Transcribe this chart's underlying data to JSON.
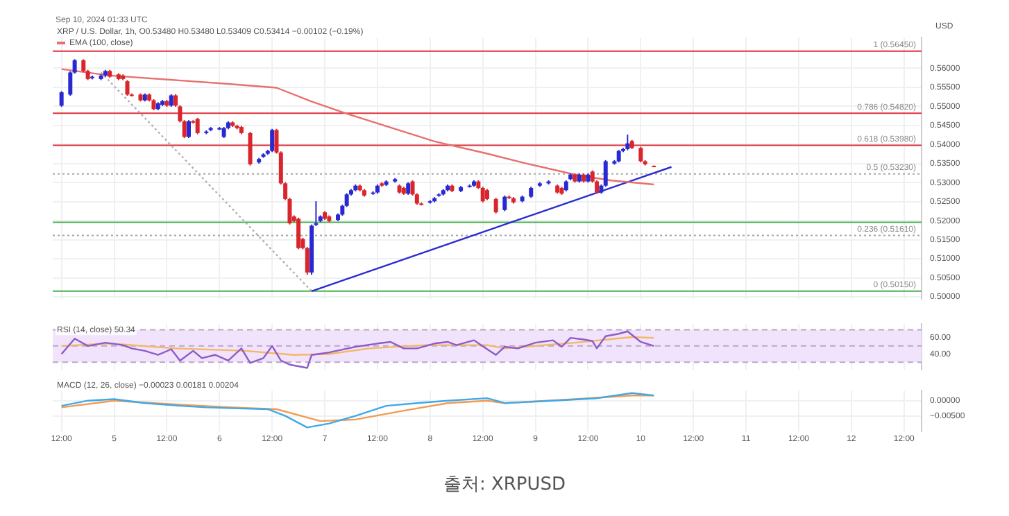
{
  "chart_data": [
    {
      "type": "candlestick",
      "title": "XRP / U.S. Dollar, 1h, O0.53480 H0.53480 L0.53409 C0.53414 −0.00102 (−0.19%)",
      "annotations": [
        "Sep 10, 2024 01:33 UTC"
      ],
      "x": [
        "2024-09-04T12:00",
        "2024-09-04T14:00",
        "2024-09-04T15:00",
        "2024-09-04T17:00",
        "2024-09-04T18:00",
        "2024-09-04T19:00",
        "2024-09-04T21:00",
        "2024-09-04T22:00",
        "2024-09-04T23:00",
        "2024-09-05T01:00",
        "2024-09-05T02:00",
        "2024-09-05T03:00",
        "2024-09-05T04:00",
        "2024-09-05T06:00",
        "2024-09-05T07:00",
        "2024-09-05T08:00",
        "2024-09-05T09:00",
        "2024-09-05T10:00",
        "2024-09-05T11:00",
        "2024-09-05T12:00",
        "2024-09-05T13:00",
        "2024-09-05T14:00",
        "2024-09-05T15:00",
        "2024-09-05T16:00",
        "2024-09-05T17:00",
        "2024-09-05T18:00",
        "2024-09-05T19:00",
        "2024-09-05T21:00",
        "2024-09-05T22:00",
        "2024-09-06T00:00",
        "2024-09-06T01:00",
        "2024-09-06T02:00",
        "2024-09-06T03:00",
        "2024-09-06T04:00",
        "2024-09-06T05:00",
        "2024-09-06T07:00",
        "2024-09-06T09:00",
        "2024-09-06T10:00",
        "2024-09-06T11:00",
        "2024-09-06T12:00",
        "2024-09-06T13:00",
        "2024-09-06T14:00",
        "2024-09-06T15:00",
        "2024-09-06T16:00",
        "2024-09-06T17:00",
        "2024-09-06T18:00",
        "2024-09-06T19:00",
        "2024-09-06T20:00",
        "2024-09-06T21:00",
        "2024-09-06T22:00",
        "2024-09-06T23:00",
        "2024-09-07T00:00",
        "2024-09-07T01:00",
        "2024-09-07T03:00",
        "2024-09-07T04:00",
        "2024-09-07T05:00",
        "2024-09-07T06:00",
        "2024-09-07T07:00",
        "2024-09-07T08:00",
        "2024-09-07T09:00",
        "2024-09-07T11:00",
        "2024-09-07T12:00",
        "2024-09-07T13:00",
        "2024-09-07T14:00",
        "2024-09-07T16:00",
        "2024-09-07T17:00",
        "2024-09-07T18:00",
        "2024-09-07T19:00",
        "2024-09-07T20:00",
        "2024-09-07T21:00",
        "2024-09-07T22:00",
        "2024-09-08T00:00",
        "2024-09-08T01:00",
        "2024-09-08T02:00",
        "2024-09-08T03:00",
        "2024-09-08T04:00",
        "2024-09-08T05:00",
        "2024-09-08T07:00",
        "2024-09-08T09:00",
        "2024-09-08T10:00",
        "2024-09-08T11:00",
        "2024-09-08T12:00",
        "2024-09-08T13:00",
        "2024-09-08T15:00",
        "2024-09-08T17:00",
        "2024-09-08T18:00",
        "2024-09-08T19:00",
        "2024-09-08T21:00",
        "2024-09-08T23:00",
        "2024-09-09T01:00",
        "2024-09-09T03:00",
        "2024-09-09T05:00",
        "2024-09-09T06:00",
        "2024-09-09T07:00",
        "2024-09-09T08:00",
        "2024-09-09T09:00",
        "2024-09-09T10:00",
        "2024-09-09T11:00",
        "2024-09-09T12:00",
        "2024-09-09T13:00",
        "2024-09-09T14:00",
        "2024-09-09T15:00",
        "2024-09-09T16:00",
        "2024-09-09T18:00",
        "2024-09-09T19:00",
        "2024-09-09T20:00",
        "2024-09-09T21:00",
        "2024-09-09T22:00",
        "2024-09-10T00:00",
        "2024-09-10T01:00",
        "2024-09-10T03:00"
      ],
      "ohlc": [
        [
          0.5502,
          0.554,
          0.5499,
          0.5537
        ],
        [
          0.5531,
          0.5592,
          0.5528,
          0.5589
        ],
        [
          0.5589,
          0.5624,
          0.5586,
          0.5621
        ],
        [
          0.5621,
          0.5624,
          0.559,
          0.5593
        ],
        [
          0.5593,
          0.5596,
          0.5569,
          0.5572
        ],
        [
          0.5574,
          0.5581,
          0.5571,
          0.5578
        ],
        [
          0.5572,
          0.5584,
          0.5569,
          0.5581
        ],
        [
          0.5581,
          0.5596,
          0.5578,
          0.5593
        ],
        [
          0.5593,
          0.5596,
          0.5575,
          0.5578
        ],
        [
          0.5584,
          0.5587,
          0.5569,
          0.5572
        ],
        [
          0.5581,
          0.5584,
          0.5569,
          0.5572
        ],
        [
          0.5566,
          0.5569,
          0.5528,
          0.5531
        ],
        [
          0.5531,
          0.5534,
          0.5526,
          0.5529
        ],
        [
          0.5531,
          0.5534,
          0.5513,
          0.5516
        ],
        [
          0.5516,
          0.5534,
          0.5513,
          0.5531
        ],
        [
          0.5531,
          0.5534,
          0.5513,
          0.5516
        ],
        [
          0.5516,
          0.5519,
          0.549,
          0.5493
        ],
        [
          0.5493,
          0.5511,
          0.549,
          0.5508
        ],
        [
          0.5504,
          0.5517,
          0.5501,
          0.5514
        ],
        [
          0.5514,
          0.5517,
          0.5499,
          0.5502
        ],
        [
          0.5502,
          0.5532,
          0.5499,
          0.5529
        ],
        [
          0.5529,
          0.5532,
          0.5499,
          0.5502
        ],
        [
          0.55,
          0.5503,
          0.5458,
          0.5461
        ],
        [
          0.5461,
          0.5464,
          0.5417,
          0.542
        ],
        [
          0.542,
          0.5464,
          0.5417,
          0.5461
        ],
        [
          0.5461,
          0.5464,
          0.5455,
          0.5458
        ],
        [
          0.5467,
          0.547,
          0.5427,
          0.543
        ],
        [
          0.543,
          0.5437,
          0.5427,
          0.5434
        ],
        [
          0.5438,
          0.5446,
          0.5435,
          0.5443
        ],
        [
          0.5441,
          0.5446,
          0.5438,
          0.5443
        ],
        [
          0.542,
          0.5446,
          0.5417,
          0.5443
        ],
        [
          0.5443,
          0.5461,
          0.544,
          0.5458
        ],
        [
          0.5458,
          0.5461,
          0.5446,
          0.5449
        ],
        [
          0.5449,
          0.5452,
          0.544,
          0.5443
        ],
        [
          0.5446,
          0.5449,
          0.5427,
          0.543
        ],
        [
          0.543,
          0.5433,
          0.5345,
          0.5348
        ],
        [
          0.5353,
          0.5365,
          0.535,
          0.5362
        ],
        [
          0.5368,
          0.5377,
          0.5365,
          0.5374
        ],
        [
          0.5376,
          0.5386,
          0.5373,
          0.5383
        ],
        [
          0.5383,
          0.5441,
          0.538,
          0.5438
        ],
        [
          0.5438,
          0.5441,
          0.5376,
          0.5379
        ],
        [
          0.5379,
          0.5382,
          0.5295,
          0.5298
        ],
        [
          0.5298,
          0.5301,
          0.5254,
          0.5257
        ],
        [
          0.5257,
          0.526,
          0.519,
          0.5193
        ],
        [
          0.5211,
          0.5214,
          0.5196,
          0.5199
        ],
        [
          0.5205,
          0.5208,
          0.5125,
          0.5128
        ],
        [
          0.5152,
          0.5155,
          0.5125,
          0.5128
        ],
        [
          0.5128,
          0.5131,
          0.5058,
          0.5064
        ],
        [
          0.5064,
          0.519,
          0.5058,
          0.5187
        ],
        [
          0.5189,
          0.5251,
          0.5186,
          0.5193
        ],
        [
          0.5199,
          0.5214,
          0.5196,
          0.5211
        ],
        [
          0.5222,
          0.5225,
          0.5202,
          0.5205
        ],
        [
          0.5211,
          0.5214,
          0.5196,
          0.5199
        ],
        [
          0.5202,
          0.5219,
          0.5199,
          0.5216
        ],
        [
          0.5216,
          0.5242,
          0.5213,
          0.5239
        ],
        [
          0.5239,
          0.5272,
          0.5236,
          0.5269
        ],
        [
          0.5269,
          0.5283,
          0.5266,
          0.528
        ],
        [
          0.528,
          0.5295,
          0.5277,
          0.5292
        ],
        [
          0.5292,
          0.5295,
          0.5277,
          0.528
        ],
        [
          0.528,
          0.5283,
          0.5263,
          0.5266
        ],
        [
          0.5271,
          0.5277,
          0.5268,
          0.5274
        ],
        [
          0.5274,
          0.5295,
          0.5271,
          0.5292
        ],
        [
          0.5298,
          0.5301,
          0.5289,
          0.5292
        ],
        [
          0.5294,
          0.5306,
          0.5291,
          0.5303
        ],
        [
          0.5303,
          0.5312,
          0.53,
          0.5309
        ],
        [
          0.5292,
          0.5295,
          0.5271,
          0.5274
        ],
        [
          0.5286,
          0.5289,
          0.5268,
          0.5271
        ],
        [
          0.5271,
          0.5301,
          0.5268,
          0.5298
        ],
        [
          0.5303,
          0.5306,
          0.5266,
          0.5269
        ],
        [
          0.5269,
          0.5272,
          0.5242,
          0.5245
        ],
        [
          0.5245,
          0.5248,
          0.524,
          0.5243
        ],
        [
          0.5248,
          0.5254,
          0.5245,
          0.5251
        ],
        [
          0.5251,
          0.5262,
          0.5248,
          0.5259
        ],
        [
          0.5266,
          0.5272,
          0.5263,
          0.5269
        ],
        [
          0.5269,
          0.5283,
          0.5266,
          0.528
        ],
        [
          0.528,
          0.5295,
          0.5277,
          0.5292
        ],
        [
          0.5292,
          0.5295,
          0.5275,
          0.5278
        ],
        [
          0.5278,
          0.5291,
          0.5275,
          0.5288
        ],
        [
          0.529,
          0.5295,
          0.5287,
          0.5292
        ],
        [
          0.5292,
          0.5306,
          0.5289,
          0.5303
        ],
        [
          0.5303,
          0.5306,
          0.5283,
          0.5286
        ],
        [
          0.5286,
          0.5289,
          0.5248,
          0.5251
        ],
        [
          0.528,
          0.5283,
          0.5254,
          0.5257
        ],
        [
          0.5257,
          0.526,
          0.5219,
          0.5222
        ],
        [
          0.5228,
          0.5266,
          0.5225,
          0.5263
        ],
        [
          0.5263,
          0.5266,
          0.5257,
          0.526
        ],
        [
          0.5259,
          0.5262,
          0.5245,
          0.5248
        ],
        [
          0.5251,
          0.5266,
          0.5248,
          0.5263
        ],
        [
          0.5263,
          0.5289,
          0.526,
          0.5286
        ],
        [
          0.5292,
          0.5301,
          0.5289,
          0.5298
        ],
        [
          0.5298,
          0.5306,
          0.5295,
          0.5303
        ],
        [
          0.5292,
          0.5295,
          0.5271,
          0.5274
        ],
        [
          0.5286,
          0.5289,
          0.5268,
          0.5271
        ],
        [
          0.528,
          0.5306,
          0.5277,
          0.5303
        ],
        [
          0.5309,
          0.5324,
          0.5306,
          0.5321
        ],
        [
          0.5321,
          0.5324,
          0.53,
          0.5303
        ],
        [
          0.5303,
          0.5324,
          0.53,
          0.5321
        ],
        [
          0.5321,
          0.5324,
          0.53,
          0.5303
        ],
        [
          0.5303,
          0.5324,
          0.53,
          0.5321
        ],
        [
          0.5329,
          0.5332,
          0.53,
          0.5303
        ],
        [
          0.5303,
          0.5306,
          0.5271,
          0.5274
        ],
        [
          0.5274,
          0.5295,
          0.5271,
          0.5292
        ],
        [
          0.5292,
          0.5359,
          0.5289,
          0.5356
        ],
        [
          0.535,
          0.5359,
          0.5347,
          0.5356
        ],
        [
          0.5356,
          0.5386,
          0.5353,
          0.5383
        ],
        [
          0.5383,
          0.5391,
          0.538,
          0.5388
        ],
        [
          0.5388,
          0.5426,
          0.5385,
          0.5403
        ],
        [
          0.5409,
          0.5412,
          0.5388,
          0.5391
        ],
        [
          0.5391,
          0.5394,
          0.5353,
          0.5356
        ],
        [
          0.5356,
          0.5359,
          0.5345,
          0.5348
        ],
        [
          0.5344,
          0.5345,
          0.5341,
          0.5342
        ]
      ],
      "colors": [
        "#2929d4",
        "#2929d4",
        "#2929d4",
        "#d9262d",
        "#d9262d",
        "#2929d4",
        "#2929d4",
        "#2929d4",
        "#d9262d",
        "#d9262d",
        "#d9262d",
        "#d9262d",
        "#d9262d",
        "#d9262d",
        "#2929d4",
        "#d9262d",
        "#d9262d",
        "#2929d4",
        "#2929d4",
        "#d9262d",
        "#2929d4",
        "#d9262d",
        "#d9262d",
        "#d9262d",
        "#2929d4",
        "#d9262d",
        "#d9262d",
        "#2929d4",
        "#2929d4",
        "#2929d4",
        "#2929d4",
        "#2929d4",
        "#d9262d",
        "#d9262d",
        "#d9262d",
        "#d9262d",
        "#2929d4",
        "#2929d4",
        "#2929d4",
        "#2929d4",
        "#d9262d",
        "#d9262d",
        "#d9262d",
        "#d9262d",
        "#d9262d",
        "#d9262d",
        "#d9262d",
        "#d9262d",
        "#2929d4",
        "#2929d4",
        "#2929d4",
        "#d9262d",
        "#d9262d",
        "#2929d4",
        "#2929d4",
        "#2929d4",
        "#2929d4",
        "#2929d4",
        "#d9262d",
        "#d9262d",
        "#2929d4",
        "#2929d4",
        "#d9262d",
        "#2929d4",
        "#2929d4",
        "#d9262d",
        "#d9262d",
        "#2929d4",
        "#d9262d",
        "#d9262d",
        "#d9262d",
        "#2929d4",
        "#2929d4",
        "#2929d4",
        "#2929d4",
        "#2929d4",
        "#d9262d",
        "#2929d4",
        "#2929d4",
        "#2929d4",
        "#d9262d",
        "#d9262d",
        "#d9262d",
        "#d9262d",
        "#2929d4",
        "#d9262d",
        "#d9262d",
        "#2929d4",
        "#2929d4",
        "#2929d4",
        "#2929d4",
        "#d9262d",
        "#d9262d",
        "#2929d4",
        "#2929d4",
        "#d9262d",
        "#2929d4",
        "#d9262d",
        "#2929d4",
        "#d9262d",
        "#d9262d",
        "#2929d4",
        "#2929d4",
        "#2929d4",
        "#2929d4",
        "#2929d4",
        "#2929d4",
        "#d9262d",
        "#d9262d",
        "#d9262d",
        "#d9262d"
      ],
      "series": [
        {
          "name": "EMA (100, close)",
          "type": "line",
          "color": "#e8706e",
          "x": [
            "2024-09-04T12:00",
            "2024-09-04T23:00",
            "2024-09-06T01:00",
            "2024-09-06T13:00",
            "2024-09-06T21:00",
            "2024-09-07T05:00",
            "2024-09-08T01:00",
            "2024-09-08T13:00",
            "2024-09-08T22:00",
            "2024-09-09T09:00",
            "2024-09-09T17:00",
            "2024-09-10T03:00"
          ],
          "values": [
            0.5598,
            0.5581,
            0.556,
            0.5549,
            0.5513,
            0.5481,
            0.5408,
            0.5376,
            0.535,
            0.5321,
            0.5306,
            0.5295
          ]
        },
        {
          "type": "line",
          "color": "#2b2bd0",
          "x": [
            "2024-09-06T21:00",
            "2024-09-10T07:00"
          ],
          "values": [
            0.5015,
            0.5341
          ]
        },
        {
          "type": "line",
          "color": "#b0b0b0",
          "line_style": "dotted",
          "x": [
            "2024-09-04T21:00",
            "2024-09-06T21:00"
          ],
          "values": [
            0.5589,
            0.5015
          ]
        }
      ],
      "ref_lines": [
        {
          "axis": "y",
          "value": 0.5645,
          "label": "1 (0.56450)",
          "color": "#e0303a"
        },
        {
          "axis": "y",
          "value": 0.5482,
          "label": "0.786 (0.54820)",
          "color": "#e0303a"
        },
        {
          "axis": "y",
          "value": 0.5398,
          "label": "0.618 (0.53980)",
          "color": "#e0303a"
        },
        {
          "axis": "y",
          "value": 0.5323,
          "label": "0.5 (0.53230)",
          "color": "#a8a8a8",
          "line_style": "dotted"
        },
        {
          "axis": "y",
          "value": 0.5196,
          "color": "#4caf50"
        },
        {
          "axis": "y",
          "value": 0.5161,
          "label": "0.236 (0.51610)",
          "color": "#a8a8a8",
          "line_style": "dotted"
        },
        {
          "axis": "y",
          "value": 0.5015,
          "label": "0 (0.50150)",
          "color": "#4caf50"
        }
      ],
      "xlim": [
        "2024-09-04T10:00",
        "2024-09-12T16:00"
      ],
      "xticks": [
        "2024-09-04T12:00",
        "2024-09-05",
        "2024-09-05T12:00",
        "2024-09-06",
        "2024-09-06T12:00",
        "2024-09-07",
        "2024-09-07T12:00",
        "2024-09-08",
        "2024-09-08T12:00",
        "2024-09-09",
        "2024-09-09T12:00",
        "2024-09-10",
        "2024-09-10T12:00",
        "2024-09-11",
        "2024-09-11T12:00",
        "2024-09-12",
        "2024-09-12T12:00"
      ],
      "ylim": [
        0.4995,
        0.5681
      ],
      "yticks": [
        {
          "value": 0.5,
          "label": "0.50000"
        },
        {
          "value": 0.505,
          "label": "0.50500"
        },
        {
          "value": 0.51,
          "label": "0.51000"
        },
        {
          "value": 0.515,
          "label": "0.51500"
        },
        {
          "value": 0.52,
          "label": "0.52000"
        },
        {
          "value": 0.525,
          "label": "0.52500"
        },
        {
          "value": 0.53,
          "label": "0.53000"
        },
        {
          "value": 0.535,
          "label": "0.53500"
        },
        {
          "value": 0.54,
          "label": "0.54000"
        },
        {
          "value": 0.545,
          "label": "0.54500"
        },
        {
          "value": 0.55,
          "label": "0.55000"
        },
        {
          "value": 0.555,
          "label": "0.55500"
        },
        {
          "value": 0.56,
          "label": "0.56000"
        }
      ],
      "ylabel": "USD",
      "grid": true,
      "legend": "top left",
      "tick_labels": "y"
    },
    {
      "type": "line",
      "title": "RSI (14, close) 50.34",
      "series": [
        {
          "type": "line",
          "color": "#8d5cc8",
          "x": [
            "2024-09-04T12:00",
            "2024-09-04T15:00",
            "2024-09-04T18:00",
            "2024-09-04T22:00",
            "2024-09-05T02:00",
            "2024-09-05T04:00",
            "2024-09-05T07:00",
            "2024-09-05T10:00",
            "2024-09-05T13:00",
            "2024-09-05T15:00",
            "2024-09-05T18:00",
            "2024-09-05T20:00",
            "2024-09-05T23:00",
            "2024-09-06T02:00",
            "2024-09-06T05:00",
            "2024-09-06T07:00",
            "2024-09-06T10:00",
            "2024-09-06T12:00",
            "2024-09-06T14:00",
            "2024-09-06T16:00",
            "2024-09-06T20:00",
            "2024-09-06T21:00",
            "2024-09-07T01:00",
            "2024-09-07T07:00",
            "2024-09-07T12:00",
            "2024-09-07T15:00",
            "2024-09-07T18:00",
            "2024-09-07T21:00",
            "2024-09-08T01:00",
            "2024-09-08T04:00",
            "2024-09-08T06:00",
            "2024-09-08T10:00",
            "2024-09-08T13:00",
            "2024-09-08T15:00",
            "2024-09-08T17:00",
            "2024-09-08T20:00",
            "2024-09-09T00:00",
            "2024-09-09T04:00",
            "2024-09-09T06:00",
            "2024-09-09T08:00",
            "2024-09-09T11:00",
            "2024-09-09T13:00",
            "2024-09-09T14:00",
            "2024-09-09T16:00",
            "2024-09-09T19:00",
            "2024-09-09T21:00",
            "2024-09-10T00:00",
            "2024-09-10T03:00"
          ],
          "values": [
            40,
            59,
            50,
            54,
            51,
            47,
            44,
            39,
            46,
            32,
            44,
            35,
            39,
            32,
            47,
            29,
            35,
            50,
            32,
            27,
            23,
            39,
            42,
            49,
            53,
            55,
            47,
            47,
            53,
            55,
            51,
            57,
            46,
            39,
            49,
            47,
            54,
            57,
            49,
            60,
            58,
            56,
            47,
            62,
            65,
            68,
            55,
            50
          ]
        },
        {
          "type": "line",
          "color": "#f2b866",
          "x": [
            "2024-09-04T12:00",
            "2024-09-04T23:00",
            "2024-09-05T14:00",
            "2024-09-06T06:00",
            "2024-09-06T17:00",
            "2024-09-07T01:00",
            "2024-09-07T10:00",
            "2024-09-07T23:00",
            "2024-09-08T13:00",
            "2024-09-08T17:00",
            "2024-09-09T09:00",
            "2024-09-09T22:00",
            "2024-09-10T03:00"
          ],
          "values": [
            50,
            53,
            47,
            44,
            39,
            40,
            47,
            51,
            51,
            47,
            54,
            61,
            60
          ]
        }
      ],
      "bands": [
        {
          "axis": "y",
          "from": 30,
          "to": 70,
          "color": "#f1e3fb"
        }
      ],
      "ref_lines": [
        {
          "axis": "y",
          "value": 70,
          "color": "#b9a6c9",
          "line_style": "dashed"
        },
        {
          "axis": "y",
          "value": 50,
          "color": "#b9a6c9",
          "line_style": "dashed"
        },
        {
          "axis": "y",
          "value": 30,
          "color": "#b9a6c9",
          "line_style": "dashed"
        }
      ],
      "xlim": [
        "2024-09-04T10:00",
        "2024-09-12T16:00"
      ],
      "xticks": [
        "2024-09-04T12:00",
        "2024-09-05",
        "2024-09-05T12:00",
        "2024-09-06",
        "2024-09-06T12:00",
        "2024-09-07",
        "2024-09-07T12:00",
        "2024-09-08",
        "2024-09-08T12:00",
        "2024-09-09",
        "2024-09-09T12:00",
        "2024-09-10",
        "2024-09-10T12:00",
        "2024-09-11",
        "2024-09-11T12:00",
        "2024-09-12",
        "2024-09-12T12:00"
      ],
      "ylim": [
        21,
        77
      ],
      "yticks": [
        {
          "value": 60,
          "label": "60.00"
        },
        {
          "value": 40,
          "label": "40.00"
        }
      ],
      "grid": true,
      "tick_labels": "y"
    },
    {
      "type": "line",
      "title": "MACD (12, 26, close) −0.00023 0.00181 0.00204",
      "annotations": [
        "출처: XRPUSD"
      ],
      "series": [
        {
          "type": "line",
          "color": "#3fa9e8",
          "x": [
            "2024-09-04T12:00",
            "2024-09-04T18:00",
            "2024-09-05T00:00",
            "2024-09-05T07:00",
            "2024-09-05T15:00",
            "2024-09-05T21:00",
            "2024-09-06T03:00",
            "2024-09-06T11:00",
            "2024-09-06T15:00",
            "2024-09-06T20:00",
            "2024-09-07T01:00",
            "2024-09-07T07:00",
            "2024-09-07T14:00",
            "2024-09-07T21:00",
            "2024-09-08T04:00",
            "2024-09-08T13:00",
            "2024-09-08T17:00",
            "2024-09-09T04:00",
            "2024-09-09T14:00",
            "2024-09-09T22:00",
            "2024-09-10T03:00"
          ],
          "values": [
            -0.0017,
            0,
            0.0005,
            -0.0008,
            -0.0017,
            -0.0022,
            -0.0025,
            -0.0028,
            -0.005,
            -0.0088,
            -0.0075,
            -0.005,
            -0.0017,
            -0.0008,
            0,
            0.0008,
            -0.0008,
            0,
            0.0008,
            0.0025,
            0.0017
          ]
        },
        {
          "type": "line",
          "color": "#f29b52",
          "x": [
            "2024-09-04T12:00",
            "2024-09-05T00:00",
            "2024-09-05T15:00",
            "2024-09-06T03:00",
            "2024-09-06T13:00",
            "2024-09-06T23:00",
            "2024-09-07T07:00",
            "2024-09-07T18:00",
            "2024-09-08T04:00",
            "2024-09-08T13:00",
            "2024-09-08T17:00",
            "2024-09-09T09:00",
            "2024-09-09T22:00",
            "2024-09-10T03:00"
          ],
          "values": [
            -0.0022,
            0,
            -0.0013,
            -0.0022,
            -0.0028,
            -0.0067,
            -0.0062,
            -0.0033,
            -0.0008,
            0,
            -0.0008,
            0.0005,
            0.0017,
            0.0017
          ]
        }
      ],
      "xlim": [
        "2024-09-04T10:00",
        "2024-09-12T16:00"
      ],
      "xticks": [
        {
          "value": "2024-09-04T12:00",
          "label": "12:00"
        },
        {
          "value": "2024-09-05",
          "label": "5"
        },
        {
          "value": "2024-09-05T12:00",
          "label": "12:00"
        },
        {
          "value": "2024-09-06",
          "label": "6"
        },
        {
          "value": "2024-09-06T12:00",
          "label": "12:00"
        },
        {
          "value": "2024-09-07",
          "label": "7"
        },
        {
          "value": "2024-09-07T12:00",
          "label": "12:00"
        },
        {
          "value": "2024-09-08",
          "label": "8"
        },
        {
          "value": "2024-09-08T12:00",
          "label": "12:00"
        },
        {
          "value": "2024-09-09",
          "label": "9"
        },
        {
          "value": "2024-09-09T12:00",
          "label": "12:00"
        },
        {
          "value": "2024-09-10",
          "label": "10"
        },
        {
          "value": "2024-09-10T12:00",
          "label": "12:00"
        },
        {
          "value": "2024-09-11",
          "label": "11"
        },
        {
          "value": "2024-09-11T12:00",
          "label": "12:00"
        },
        {
          "value": "2024-09-12",
          "label": "12"
        },
        {
          "value": "2024-09-12T12:00",
          "label": "12:00"
        }
      ],
      "ylim": [
        -0.01,
        0.0033
      ],
      "yticks": [
        {
          "value": 0,
          "label": "0.00000"
        },
        {
          "value": -0.005,
          "label": "−0.00500"
        }
      ],
      "grid": true
    }
  ]
}
